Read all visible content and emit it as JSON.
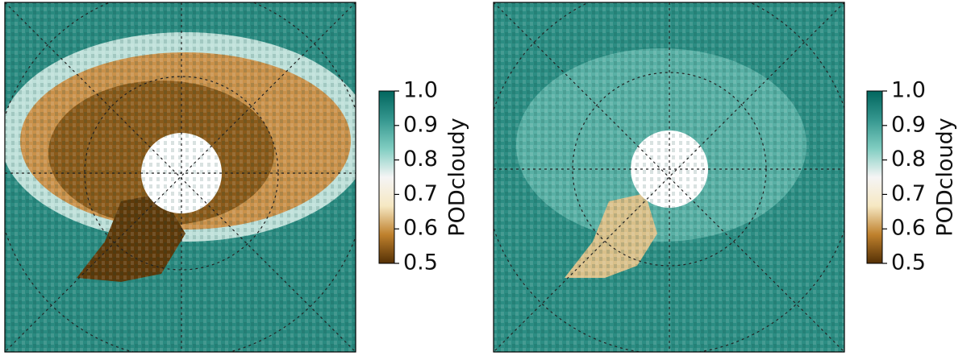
{
  "chart_data": [
    {
      "type": "map",
      "colorbar": {
        "label": "PODcloudy",
        "lim": [
          0.5,
          1.0
        ],
        "ticks": [
          0.5,
          0.6,
          0.7,
          0.8,
          0.9,
          {
            "value": 1,
            "label": "1.0"
          }
        ],
        "cmap": [
          "#543005",
          "#bf812d",
          "#f6e8c3",
          "#f5f5f5",
          "#80cdc1",
          "#35978f",
          "#01665e"
        ]
      }
    },
    {
      "type": "map",
      "colorbar": {
        "label": "PODcloudy",
        "lim": [
          0.5,
          1.0
        ],
        "ticks": [
          0.5,
          0.6,
          0.7,
          0.8,
          0.9,
          {
            "value": 1,
            "label": "1.0"
          }
        ],
        "cmap": [
          "#543005",
          "#bf812d",
          "#f6e8c3",
          "#f5f5f5",
          "#80cdc1",
          "#35978f",
          "#01665e"
        ]
      }
    }
  ]
}
